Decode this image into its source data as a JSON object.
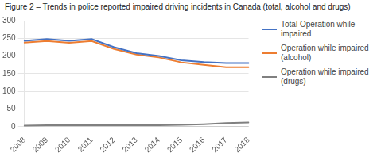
{
  "chart_data": {
    "type": "line",
    "title": "Figure 2 – Trends in police reported impaired driving incidents in Canada (total, alcohol and drugs)",
    "categories": [
      2008,
      2009,
      2010,
      2011,
      2012,
      2013,
      2014,
      2015,
      2016,
      2017,
      2018
    ],
    "series": [
      {
        "name": "Total Operation while\nimpaired",
        "color": "#4472C4",
        "values": [
          243,
          248,
          243,
          248,
          225,
          208,
          200,
          188,
          183,
          180,
          180
        ]
      },
      {
        "name": "Operation while impaired\n(alcohol)",
        "color": "#ED7D31",
        "values": [
          238,
          242,
          237,
          242,
          220,
          204,
          196,
          182,
          175,
          168,
          168
        ]
      },
      {
        "name": "Operation while impaired\n(drugs)",
        "color": "#808080",
        "values": [
          3,
          4,
          4,
          4,
          4,
          4,
          4,
          5,
          7,
          10,
          12
        ]
      }
    ],
    "ylim": [
      0,
      300
    ],
    "yticks": [
      0,
      50,
      100,
      150,
      200,
      250,
      300
    ],
    "grid": true,
    "legend": "right"
  }
}
